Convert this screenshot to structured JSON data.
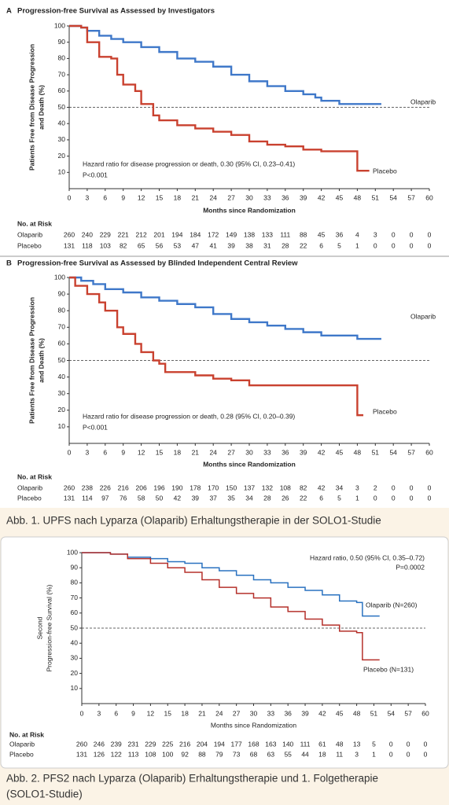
{
  "chart_data": [
    {
      "type": "line",
      "step": true,
      "label": "A",
      "title": "Progression-free Survival as Assessed by Investigators",
      "ylabel": [
        "Patients Free from Disease Progression",
        "and Death (%)"
      ],
      "xlabel": "Months since Randomization",
      "xlim": [
        0,
        60
      ],
      "ylim": [
        0,
        100
      ],
      "xticks": [
        0,
        3,
        6,
        9,
        12,
        15,
        18,
        21,
        24,
        27,
        30,
        33,
        36,
        39,
        42,
        45,
        48,
        51,
        54,
        57,
        60
      ],
      "yticks": [
        10,
        20,
        30,
        40,
        50,
        60,
        70,
        80,
        90,
        100
      ],
      "reference_line": 50,
      "annotations": [
        "Hazard ratio for disease progression or death, 0.30 (95% CI, 0.23–0.41)",
        "P<0.001"
      ],
      "series": [
        {
          "name": "Olaparib",
          "color": "#3f78c9",
          "x": [
            0,
            2,
            3,
            5,
            7,
            9,
            12,
            15,
            18,
            21,
            24,
            27,
            30,
            33,
            36,
            39,
            41,
            42,
            45,
            48,
            52
          ],
          "values": [
            100,
            99,
            97,
            94,
            92,
            90,
            87,
            84,
            80,
            78,
            75,
            70,
            66,
            63,
            60,
            58,
            56,
            54,
            52,
            52,
            52
          ]
        },
        {
          "name": "Placebo",
          "color": "#c9412f",
          "x": [
            0,
            2,
            3,
            5,
            7,
            8,
            9,
            11,
            12,
            14,
            15,
            18,
            21,
            24,
            27,
            30,
            33,
            36,
            39,
            42,
            45,
            48,
            50
          ],
          "values": [
            100,
            99,
            90,
            81,
            80,
            70,
            64,
            60,
            52,
            45,
            42,
            39,
            37,
            35,
            33,
            29,
            27,
            26,
            24,
            23,
            23,
            11,
            11
          ]
        }
      ],
      "risk_table": {
        "title": "No. at Risk",
        "rows": [
          {
            "name": "Olaparib",
            "values": [
              260,
              240,
              229,
              221,
              212,
              201,
              194,
              184,
              172,
              149,
              138,
              133,
              111,
              88,
              45,
              36,
              4,
              3,
              0,
              0,
              0
            ]
          },
          {
            "name": "Placebo",
            "values": [
              131,
              118,
              103,
              82,
              65,
              56,
              53,
              47,
              41,
              39,
              38,
              31,
              28,
              22,
              6,
              5,
              1,
              0,
              0,
              0,
              0
            ]
          }
        ]
      }
    },
    {
      "type": "line",
      "step": true,
      "label": "B",
      "title": "Progression-free Survival as Assessed by Blinded Independent Central Review",
      "ylabel": [
        "Patients Free from Disease Progression",
        "and Death (%)"
      ],
      "xlabel": "Months since Randomization",
      "xlim": [
        0,
        60
      ],
      "ylim": [
        0,
        100
      ],
      "xticks": [
        0,
        3,
        6,
        9,
        12,
        15,
        18,
        21,
        24,
        27,
        30,
        33,
        36,
        39,
        42,
        45,
        48,
        51,
        54,
        57,
        60
      ],
      "yticks": [
        10,
        20,
        30,
        40,
        50,
        60,
        70,
        80,
        90,
        100
      ],
      "reference_line": 50,
      "annotations": [
        "Hazard ratio for disease progression or death, 0.28 (95% CI, 0.20–0.39)",
        "P<0.001"
      ],
      "series": [
        {
          "name": "Olaparib",
          "color": "#3f78c9",
          "x": [
            0,
            2,
            4,
            6,
            9,
            12,
            15,
            18,
            21,
            24,
            27,
            30,
            33,
            36,
            39,
            42,
            45,
            48,
            52
          ],
          "values": [
            100,
            98,
            96,
            93,
            91,
            88,
            86,
            84,
            82,
            78,
            75,
            73,
            71,
            69,
            67,
            65,
            65,
            63,
            63
          ]
        },
        {
          "name": "Placebo",
          "color": "#c9412f",
          "x": [
            0,
            1,
            3,
            5,
            6,
            8,
            9,
            11,
            12,
            14,
            15,
            16,
            21,
            24,
            27,
            30,
            36,
            42,
            47,
            48,
            49
          ],
          "values": [
            100,
            95,
            90,
            85,
            80,
            70,
            66,
            60,
            55,
            50,
            48,
            43,
            41,
            39,
            38,
            35,
            35,
            35,
            35,
            17,
            17
          ]
        }
      ],
      "risk_table": {
        "title": "No. at Risk",
        "rows": [
          {
            "name": "Olaparib",
            "values": [
              260,
              238,
              226,
              216,
              206,
              196,
              190,
              178,
              170,
              150,
              137,
              132,
              108,
              82,
              42,
              34,
              3,
              2,
              0,
              0,
              0
            ]
          },
          {
            "name": "Placebo",
            "values": [
              131,
              114,
              97,
              76,
              58,
              50,
              42,
              39,
              37,
              35,
              34,
              28,
              26,
              22,
              6,
              5,
              1,
              0,
              0,
              0,
              0
            ]
          }
        ]
      }
    },
    {
      "type": "line",
      "step": true,
      "ylabel": [
        "Second",
        "Progression-free Survival (%)"
      ],
      "xlabel": "Months since Randomization",
      "xlim": [
        0,
        60
      ],
      "ylim": [
        0,
        100
      ],
      "xticks": [
        0,
        3,
        6,
        9,
        12,
        15,
        18,
        21,
        24,
        27,
        30,
        33,
        36,
        39,
        42,
        45,
        48,
        51,
        54,
        57,
        60
      ],
      "yticks": [
        10,
        20,
        30,
        40,
        50,
        60,
        70,
        80,
        90,
        100
      ],
      "reference_line": 50,
      "annotations": [
        "Hazard ratio, 0.50 (95% CI, 0.35–0.72)",
        "P=0.0002"
      ],
      "series": [
        {
          "name": "Olaparib (N=260)",
          "color": "#2a72c0",
          "x": [
            0,
            5,
            8,
            12,
            15,
            18,
            21,
            24,
            27,
            30,
            33,
            36,
            39,
            42,
            45,
            48,
            49,
            52
          ],
          "values": [
            100,
            99,
            97,
            96,
            94,
            93,
            90,
            88,
            85,
            82,
            80,
            77,
            75,
            72,
            68,
            67,
            58,
            58
          ]
        },
        {
          "name": "Placebo (N=131)",
          "color": "#b5302b",
          "x": [
            0,
            5,
            8,
            12,
            15,
            18,
            21,
            24,
            27,
            30,
            33,
            36,
            39,
            42,
            45,
            48,
            49,
            52
          ],
          "values": [
            100,
            99,
            96,
            93,
            90,
            87,
            82,
            77,
            73,
            70,
            64,
            61,
            56,
            52,
            48,
            47,
            29,
            29
          ]
        }
      ],
      "risk_table": {
        "title": "No. at Risk",
        "rows": [
          {
            "name": "Olaparib",
            "values": [
              260,
              246,
              239,
              231,
              229,
              225,
              216,
              204,
              194,
              177,
              168,
              163,
              140,
              111,
              61,
              48,
              13,
              5,
              0,
              0,
              0
            ]
          },
          {
            "name": "Placebo",
            "values": [
              131,
              126,
              122,
              113,
              108,
              100,
              92,
              88,
              79,
              73,
              68,
              63,
              55,
              44,
              18,
              11,
              3,
              1,
              0,
              0,
              0
            ]
          }
        ]
      }
    }
  ],
  "captions": [
    "Abb. 1. UPFS nach Lyparza (Olaparib) Erhaltungstherapie in der SOLO1-Studie",
    "Abb. 2. PFS2 nach Lyparza (Olaparib) Erhaltungstherapie und 1. Folgetherapie",
    "(SOLO1-Studie)"
  ]
}
